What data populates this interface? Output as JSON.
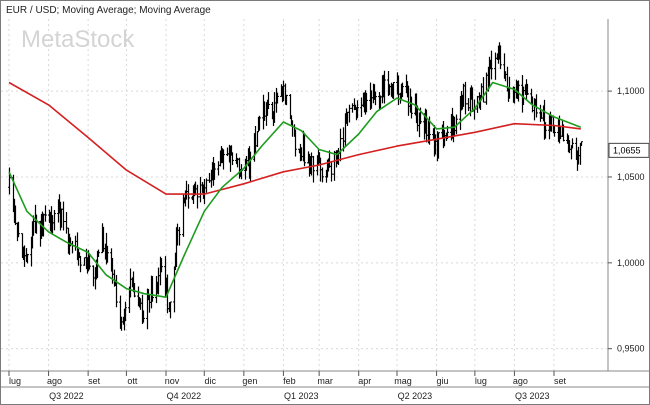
{
  "chart_data": {
    "type": "bar",
    "subtype": "ohlc-price-chart-with-moving-averages",
    "title": "EUR / USD; Moving Average; Moving Average",
    "watermark": "MetaStock",
    "y_axis": {
      "side": "right",
      "ylim": [
        0.937,
        1.142
      ],
      "ticks": [
        0.95,
        1.0,
        1.05,
        1.1
      ],
      "tick_labels": [
        "0,9500",
        "1,0000",
        "1,0500",
        "1,1000"
      ]
    },
    "last_value": 1.0655,
    "last_value_label": "1,0655",
    "x_axis": {
      "start": "2022-07-01",
      "end": "2023-09-30",
      "months": [
        {
          "label": "lug",
          "date": "2022-07-01"
        },
        {
          "label": "ago",
          "date": "2022-08-01"
        },
        {
          "label": "set",
          "date": "2022-09-01"
        },
        {
          "label": "ott",
          "date": "2022-10-01"
        },
        {
          "label": "nov",
          "date": "2022-11-01"
        },
        {
          "label": "dic",
          "date": "2022-12-01"
        },
        {
          "label": "gen",
          "date": "2023-01-01"
        },
        {
          "label": "feb",
          "date": "2023-02-01"
        },
        {
          "label": "mar",
          "date": "2023-03-01"
        },
        {
          "label": "apr",
          "date": "2023-04-01"
        },
        {
          "label": "mag",
          "date": "2023-05-01"
        },
        {
          "label": "giu",
          "date": "2023-06-01"
        },
        {
          "label": "lug",
          "date": "2023-07-01"
        },
        {
          "label": "ago",
          "date": "2023-08-01"
        },
        {
          "label": "set",
          "date": "2023-09-01"
        }
      ],
      "quarters": [
        {
          "label": "Q3 2022",
          "date": "2022-08-15"
        },
        {
          "label": "Q4 2022",
          "date": "2022-11-15"
        },
        {
          "label": "Q1 2023",
          "date": "2023-02-15"
        },
        {
          "label": "Q2 2023",
          "date": "2023-05-15"
        },
        {
          "label": "Q3 2023",
          "date": "2023-08-15"
        }
      ]
    },
    "grid": true,
    "price_path": [
      [
        "2022-07-01",
        1.044
      ],
      [
        "2022-07-08",
        1.016
      ],
      [
        "2022-07-14",
        0.998
      ],
      [
        "2022-07-20",
        1.022
      ],
      [
        "2022-07-29",
        1.022
      ],
      [
        "2022-08-10",
        1.03
      ],
      [
        "2022-08-18",
        1.012
      ],
      [
        "2022-08-29",
        0.998
      ],
      [
        "2022-09-06",
        0.99
      ],
      [
        "2022-09-12",
        1.015
      ],
      [
        "2022-09-20",
        0.994
      ],
      [
        "2022-09-27",
        0.96
      ],
      [
        "2022-10-04",
        0.99
      ],
      [
        "2022-10-13",
        0.97
      ],
      [
        "2022-10-21",
        0.985
      ],
      [
        "2022-10-28",
        0.995
      ],
      [
        "2022-11-03",
        0.975
      ],
      [
        "2022-11-10",
        1.018
      ],
      [
        "2022-11-16",
        1.04
      ],
      [
        "2022-11-25",
        1.04
      ],
      [
        "2022-12-05",
        1.052
      ],
      [
        "2022-12-15",
        1.063
      ],
      [
        "2022-12-23",
        1.062
      ],
      [
        "2023-01-05",
        1.055
      ],
      [
        "2023-01-13",
        1.085
      ],
      [
        "2023-01-23",
        1.09
      ],
      [
        "2023-02-02",
        1.098
      ],
      [
        "2023-02-10",
        1.072
      ],
      [
        "2023-02-24",
        1.056
      ],
      [
        "2023-03-08",
        1.055
      ],
      [
        "2023-03-15",
        1.062
      ],
      [
        "2023-03-23",
        1.085
      ],
      [
        "2023-04-05",
        1.092
      ],
      [
        "2023-04-14",
        1.1
      ],
      [
        "2023-04-26",
        1.103
      ],
      [
        "2023-05-05",
        1.102
      ],
      [
        "2023-05-15",
        1.087
      ],
      [
        "2023-05-31",
        1.069
      ],
      [
        "2023-06-15",
        1.083
      ],
      [
        "2023-06-22",
        1.098
      ],
      [
        "2023-06-30",
        1.091
      ],
      [
        "2023-07-07",
        1.098
      ],
      [
        "2023-07-13",
        1.115
      ],
      [
        "2023-07-18",
        1.124
      ],
      [
        "2023-07-27",
        1.102
      ],
      [
        "2023-08-04",
        1.1
      ],
      [
        "2023-08-14",
        1.094
      ],
      [
        "2023-08-24",
        1.082
      ],
      [
        "2023-09-01",
        1.08
      ],
      [
        "2023-09-08",
        1.072
      ],
      [
        "2023-09-15",
        1.066
      ],
      [
        "2023-09-22",
        1.0655
      ]
    ],
    "series": [
      {
        "color": "#d42020",
        "values": [
          [
            "2022-07-01",
            1.105
          ],
          [
            "2022-08-01",
            1.092
          ],
          [
            "2022-09-01",
            1.073
          ],
          [
            "2022-10-01",
            1.054
          ],
          [
            "2022-11-01",
            1.04
          ],
          [
            "2022-12-01",
            1.04
          ],
          [
            "2023-01-01",
            1.046
          ],
          [
            "2023-02-01",
            1.053
          ],
          [
            "2023-03-01",
            1.057
          ],
          [
            "2023-04-01",
            1.063
          ],
          [
            "2023-05-01",
            1.068
          ],
          [
            "2023-06-01",
            1.072
          ],
          [
            "2023-07-01",
            1.076
          ],
          [
            "2023-08-01",
            1.081
          ],
          [
            "2023-09-01",
            1.08
          ],
          [
            "2023-09-22",
            1.078
          ]
        ]
      },
      {
        "color": "#1e9c1e",
        "values": [
          [
            "2022-07-01",
            1.053
          ],
          [
            "2022-07-15",
            1.03
          ],
          [
            "2022-08-01",
            1.018
          ],
          [
            "2022-08-15",
            1.012
          ],
          [
            "2022-09-01",
            1.006
          ],
          [
            "2022-09-15",
            0.993
          ],
          [
            "2022-10-01",
            0.985
          ],
          [
            "2022-10-15",
            0.982
          ],
          [
            "2022-11-01",
            0.98
          ],
          [
            "2022-11-15",
            1.004
          ],
          [
            "2022-12-01",
            1.03
          ],
          [
            "2022-12-15",
            1.044
          ],
          [
            "2023-01-01",
            1.055
          ],
          [
            "2023-01-15",
            1.068
          ],
          [
            "2023-02-01",
            1.082
          ],
          [
            "2023-02-15",
            1.077
          ],
          [
            "2023-03-01",
            1.066
          ],
          [
            "2023-03-15",
            1.063
          ],
          [
            "2023-04-01",
            1.075
          ],
          [
            "2023-04-15",
            1.088
          ],
          [
            "2023-05-01",
            1.096
          ],
          [
            "2023-05-15",
            1.092
          ],
          [
            "2023-06-01",
            1.078
          ],
          [
            "2023-06-15",
            1.079
          ],
          [
            "2023-07-01",
            1.09
          ],
          [
            "2023-07-15",
            1.105
          ],
          [
            "2023-08-01",
            1.101
          ],
          [
            "2023-08-15",
            1.092
          ],
          [
            "2023-09-01",
            1.085
          ],
          [
            "2023-09-22",
            1.079
          ]
        ]
      }
    ]
  }
}
